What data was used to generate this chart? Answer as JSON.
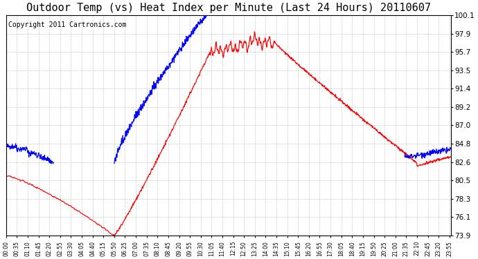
{
  "title": "Outdoor Temp (vs) Heat Index per Minute (Last 24 Hours) 20110607",
  "copyright": "Copyright 2011 Cartronics.com",
  "y_ticks": [
    73.9,
    76.1,
    78.3,
    80.5,
    82.6,
    84.8,
    87.0,
    89.2,
    91.4,
    93.5,
    95.7,
    97.9,
    100.1
  ],
  "y_min": 73.9,
  "y_max": 100.1,
  "blue_color": "#0000FF",
  "red_color": "#FF0000",
  "background_color": "#FFFFFF",
  "grid_color": "#AAAAAA",
  "title_fontsize": 11,
  "copyright_fontsize": 7.0
}
